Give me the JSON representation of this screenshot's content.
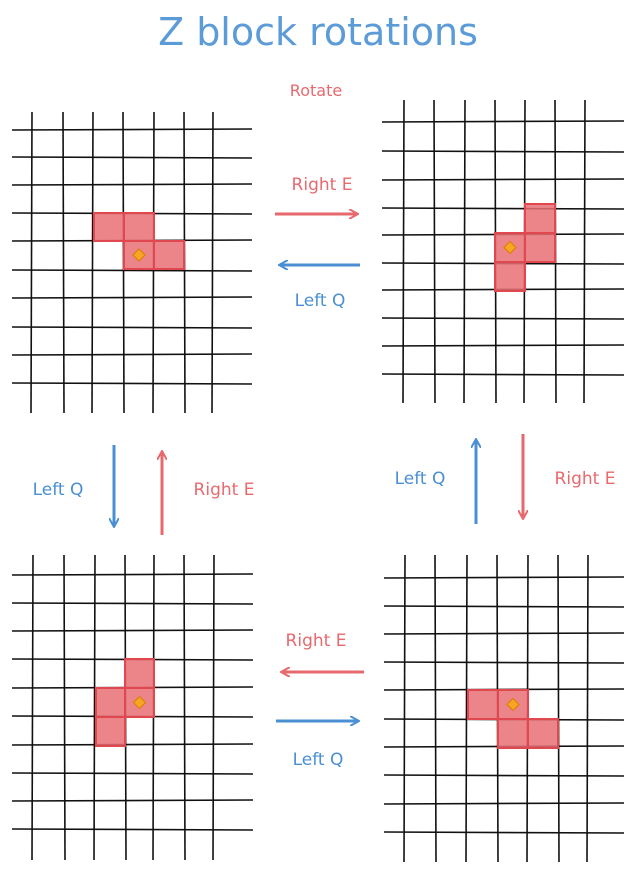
{
  "title": "Z block rotations",
  "rotate_label": "Rotate",
  "colors": {
    "right": "#e8696d",
    "left": "#4a8fd4",
    "title": "#5b9bd8",
    "rotate": "#e8696d",
    "block_fill": "#e87074",
    "block_stroke": "#e0474f",
    "pivot": "#f5a623",
    "grid": "#111111"
  },
  "labels": {
    "top_right": "Right E",
    "top_left": "Left Q",
    "left_down": "Left Q",
    "left_up": "Right E",
    "right_up": "Left Q",
    "right_down": "Right E",
    "bottom_right": "Right E",
    "bottom_left": "Left Q"
  },
  "panels": [
    {
      "name": "rotation-0",
      "cells": [
        [
          0,
          0
        ],
        [
          1,
          0
        ],
        [
          1,
          1
        ],
        [
          2,
          1
        ]
      ],
      "pivot": [
        1,
        1
      ]
    },
    {
      "name": "rotation-90",
      "cells": [
        [
          1,
          -1
        ],
        [
          0,
          0
        ],
        [
          1,
          0
        ],
        [
          0,
          1
        ]
      ],
      "pivot": [
        0,
        0
      ]
    },
    {
      "name": "rotation-180",
      "cells": [
        [
          0,
          0
        ],
        [
          1,
          0
        ],
        [
          1,
          1
        ],
        [
          2,
          1
        ]
      ],
      "pivot": [
        1,
        0
      ]
    },
    {
      "name": "rotation-270",
      "cells": [
        [
          1,
          -1
        ],
        [
          0,
          0
        ],
        [
          1,
          0
        ],
        [
          0,
          1
        ]
      ],
      "pivot": [
        1,
        0
      ]
    }
  ],
  "icons": {
    "pivot": "pivot-diamond-icon",
    "arrow": "arrow-icon"
  }
}
